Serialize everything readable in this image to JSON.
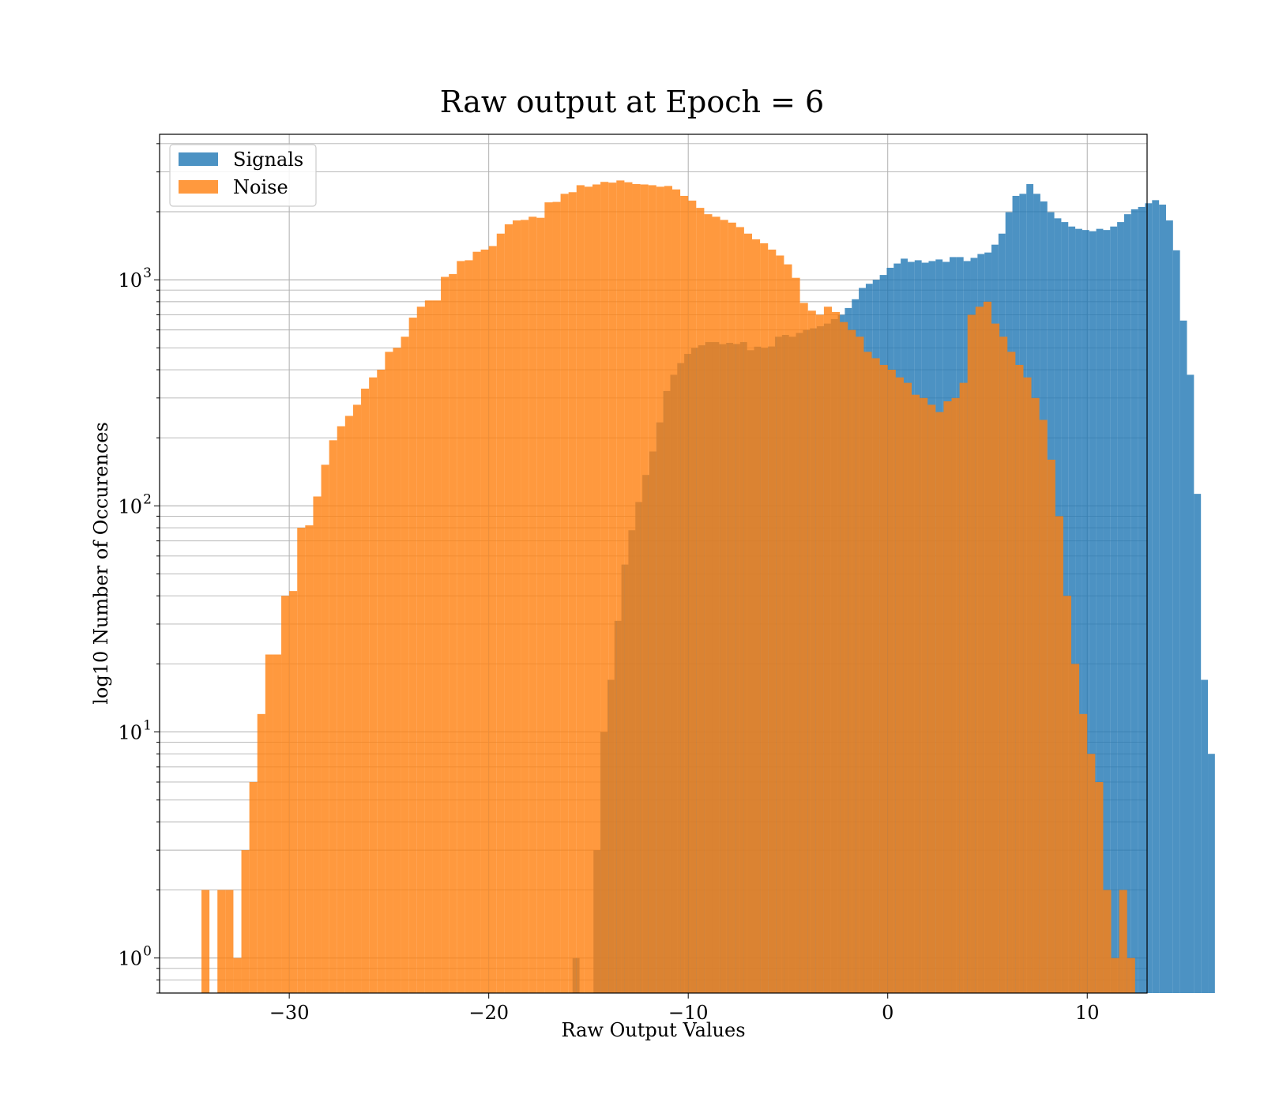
{
  "chart_data": {
    "type": "histogram",
    "title": "Raw output at Epoch = 6",
    "xlabel": "Raw Output Values",
    "ylabel": "log10 Number of Occurences",
    "xlim": [
      -36.5,
      13
    ],
    "ylim": [
      0.7,
      4400
    ],
    "yscale": "log",
    "grid": true,
    "legend_position": "top-left",
    "x_ticks": [
      -30,
      -20,
      -10,
      0,
      10
    ],
    "x_tick_labels": [
      "−30",
      "−20",
      "−10",
      "0",
      "10"
    ],
    "y_ticks": [
      {
        "value": 1,
        "base": "10",
        "exp": "0"
      },
      {
        "value": 10,
        "base": "10",
        "exp": "1"
      },
      {
        "value": 100,
        "base": "10",
        "exp": "2"
      },
      {
        "value": 1000,
        "base": "10",
        "exp": "3"
      }
    ],
    "series": [
      {
        "name": "Signals",
        "color": "#1f77b4",
        "opacity": 0.8,
        "bin_start": -15.8,
        "bin_width": 0.35,
        "values": [
          1,
          0,
          0,
          3,
          10,
          17,
          31,
          55,
          78,
          104,
          137,
          174,
          234,
          322,
          380,
          428,
          470,
          500,
          513,
          530,
          530,
          519,
          526,
          520,
          530,
          488,
          506,
          500,
          507,
          560,
          570,
          560,
          582,
          600,
          610,
          623,
          640,
          670,
          700,
          750,
          820,
          920,
          960,
          1000,
          1050,
          1130,
          1180,
          1240,
          1200,
          1220,
          1190,
          1210,
          1230,
          1200,
          1260,
          1260,
          1210,
          1250,
          1300,
          1320,
          1430,
          1600,
          1990,
          2350,
          2400,
          2650,
          2400,
          2220,
          1990,
          1870,
          1800,
          1720,
          1680,
          1660,
          1640,
          1680,
          1660,
          1720,
          1800,
          1950,
          2050,
          2100,
          2180,
          2250,
          2150,
          1830,
          1350,
          660,
          380,
          113,
          17,
          8
        ]
      },
      {
        "name": "Noise",
        "color": "#ff7f0e",
        "opacity": 0.8,
        "bin_start": -34.4,
        "bin_width": 0.4,
        "values": [
          2,
          0,
          2,
          2,
          1,
          3,
          6,
          12,
          22,
          22,
          40,
          42,
          80,
          82,
          110,
          152,
          195,
          225,
          250,
          280,
          330,
          370,
          400,
          480,
          500,
          560,
          680,
          760,
          810,
          810,
          1030,
          1060,
          1210,
          1220,
          1330,
          1360,
          1410,
          1600,
          1760,
          1830,
          1840,
          1900,
          1880,
          2200,
          2210,
          2400,
          2440,
          2620,
          2580,
          2640,
          2710,
          2690,
          2750,
          2700,
          2650,
          2640,
          2620,
          2580,
          2600,
          2510,
          2350,
          2240,
          2080,
          1950,
          1900,
          1840,
          1790,
          1710,
          1600,
          1510,
          1450,
          1360,
          1280,
          1170,
          1020,
          790,
          730,
          700,
          760,
          720,
          650,
          600,
          560,
          480,
          450,
          420,
          400,
          370,
          350,
          310,
          300,
          280,
          260,
          290,
          300,
          350,
          700,
          760,
          800,
          640,
          560,
          480,
          420,
          370,
          300,
          240,
          160,
          90,
          40,
          20,
          12,
          8,
          6,
          2,
          1,
          2,
          1
        ]
      }
    ]
  }
}
